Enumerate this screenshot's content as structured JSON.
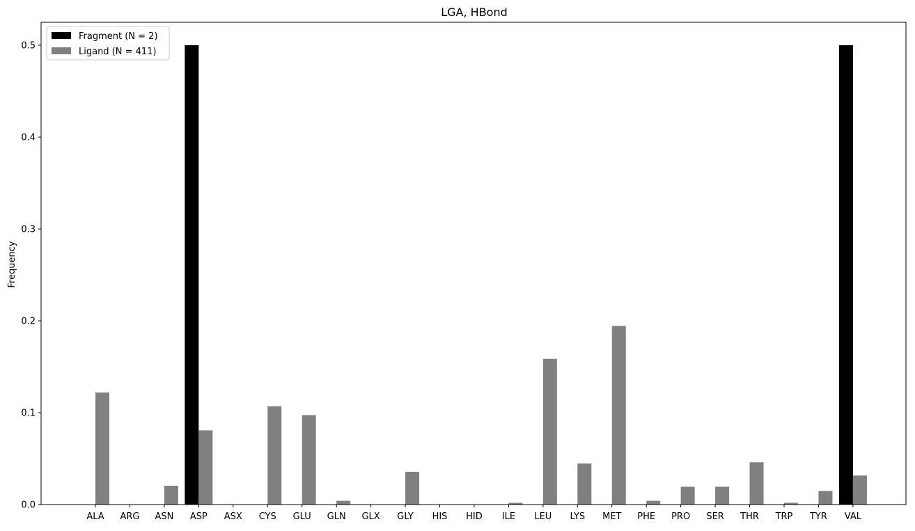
{
  "chart_data": {
    "type": "bar",
    "title": "LGA, HBond",
    "xlabel": "",
    "ylabel": "Frequency",
    "ylim": [
      0,
      0.525
    ],
    "yticks": [
      "0.0",
      "0.1",
      "0.2",
      "0.3",
      "0.4",
      "0.5"
    ],
    "grid": false,
    "legend_position": "top-left",
    "categories": [
      "ALA",
      "ARG",
      "ASN",
      "ASP",
      "ASX",
      "CYS",
      "GLU",
      "GLN",
      "GLX",
      "GLY",
      "HIS",
      "HID",
      "ILE",
      "LEU",
      "LYS",
      "MET",
      "PHE",
      "PRO",
      "SER",
      "THR",
      "TRP",
      "TYR",
      "VAL"
    ],
    "series": [
      {
        "name": "Fragment (N = 2)",
        "color": "#000000",
        "values": [
          0,
          0,
          0,
          0.5,
          0,
          0,
          0,
          0,
          0,
          0,
          0,
          0,
          0,
          0,
          0,
          0,
          0,
          0,
          0,
          0,
          0,
          0,
          0.5
        ]
      },
      {
        "name": "Ligand (N = 411)",
        "color": "#808080",
        "values": [
          0.122,
          0,
          0.0205,
          0.0808,
          0,
          0.107,
          0.0974,
          0.0041,
          0,
          0.0357,
          0,
          0,
          0.0019,
          0.1586,
          0.0447,
          0.1945,
          0.0041,
          0.0194,
          0.0194,
          0.046,
          0.0019,
          0.0148,
          0.0316
        ]
      }
    ]
  }
}
